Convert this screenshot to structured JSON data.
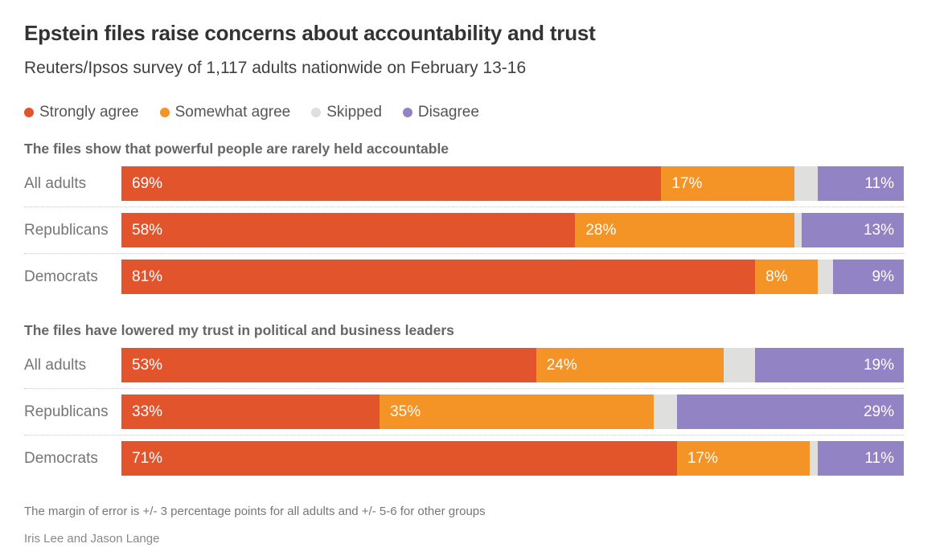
{
  "header": {
    "title": "Epstein files raise concerns about accountability and trust",
    "subtitle": "Reuters/Ipsos survey of 1,117 adults nationwide on February 13-16"
  },
  "colors": {
    "strongly_agree": "#e2542c",
    "somewhat_agree": "#f49326",
    "skipped": "#dfdfde",
    "disagree": "#9283c4"
  },
  "legend": [
    {
      "label": "Strongly agree",
      "color": "#e2542c",
      "icon": "legend-dot-icon"
    },
    {
      "label": "Somewhat agree",
      "color": "#f49326",
      "icon": "legend-dot-icon"
    },
    {
      "label": "Skipped",
      "color": "#dfdfde",
      "icon": "legend-dot-icon"
    },
    {
      "label": "Disagree",
      "color": "#9283c4",
      "icon": "legend-dot-icon"
    }
  ],
  "chart_data": [
    {
      "type": "bar",
      "orientation": "horizontal",
      "stacked": true,
      "title": "The files show that powerful people are rarely held accountable",
      "categories": [
        "All adults",
        "Republicans",
        "Democrats"
      ],
      "series": [
        {
          "name": "Strongly agree",
          "color": "#e2542c",
          "label_align": "left",
          "values": [
            69,
            58,
            81
          ],
          "show_labels": true
        },
        {
          "name": "Somewhat agree",
          "color": "#f49326",
          "label_align": "left",
          "values": [
            17,
            28,
            8
          ],
          "show_labels": true
        },
        {
          "name": "Skipped",
          "color": "#dfdfde",
          "label_align": "none",
          "values": [
            3,
            1,
            2
          ],
          "show_labels": false
        },
        {
          "name": "Disagree",
          "color": "#9283c4",
          "label_align": "right",
          "values": [
            11,
            13,
            9
          ],
          "show_labels": true
        }
      ],
      "value_suffix": "%",
      "xlim": [
        0,
        100
      ],
      "grid": false,
      "legend_position": "top"
    },
    {
      "type": "bar",
      "orientation": "horizontal",
      "stacked": true,
      "title": "The files have lowered my trust in political and business leaders",
      "categories": [
        "All adults",
        "Republicans",
        "Democrats"
      ],
      "series": [
        {
          "name": "Strongly agree",
          "color": "#e2542c",
          "label_align": "left",
          "values": [
            53,
            33,
            71
          ],
          "show_labels": true
        },
        {
          "name": "Somewhat agree",
          "color": "#f49326",
          "label_align": "left",
          "values": [
            24,
            35,
            17
          ],
          "show_labels": true
        },
        {
          "name": "Skipped",
          "color": "#dfdfde",
          "label_align": "none",
          "values": [
            4,
            3,
            1
          ],
          "show_labels": false
        },
        {
          "name": "Disagree",
          "color": "#9283c4",
          "label_align": "right",
          "values": [
            19,
            29,
            11
          ],
          "show_labels": true
        }
      ],
      "value_suffix": "%",
      "xlim": [
        0,
        100
      ],
      "grid": false,
      "legend_position": "top"
    }
  ],
  "footer": {
    "note": "The margin of error is +/- 3 percentage points for all adults and +/- 5-6 for other groups",
    "byline": "Iris Lee and Jason Lange"
  }
}
